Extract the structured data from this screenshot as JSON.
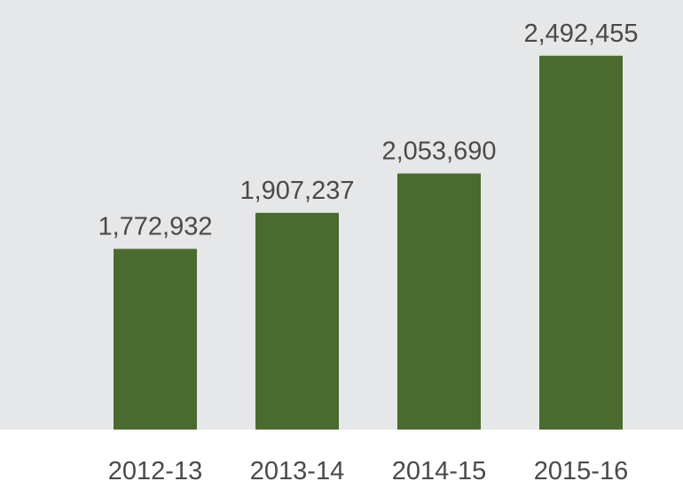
{
  "chart_data": {
    "type": "bar",
    "categories": [
      "2012-13",
      "2013-14",
      "2014-15",
      "2015-16"
    ],
    "values": [
      1772932,
      1907237,
      2053690,
      2492455
    ],
    "value_labels": [
      "1,772,932",
      "1,907,237",
      "2,053,690",
      "2,492,455"
    ],
    "title": "",
    "xlabel": "",
    "ylabel": "",
    "ylim": [
      1100000,
      2700000
    ],
    "grid": false,
    "legend": "none"
  },
  "colors": {
    "plot_background": "#e6e7e9",
    "bar": "#4a6a2f",
    "text": "#4a4a4a"
  }
}
